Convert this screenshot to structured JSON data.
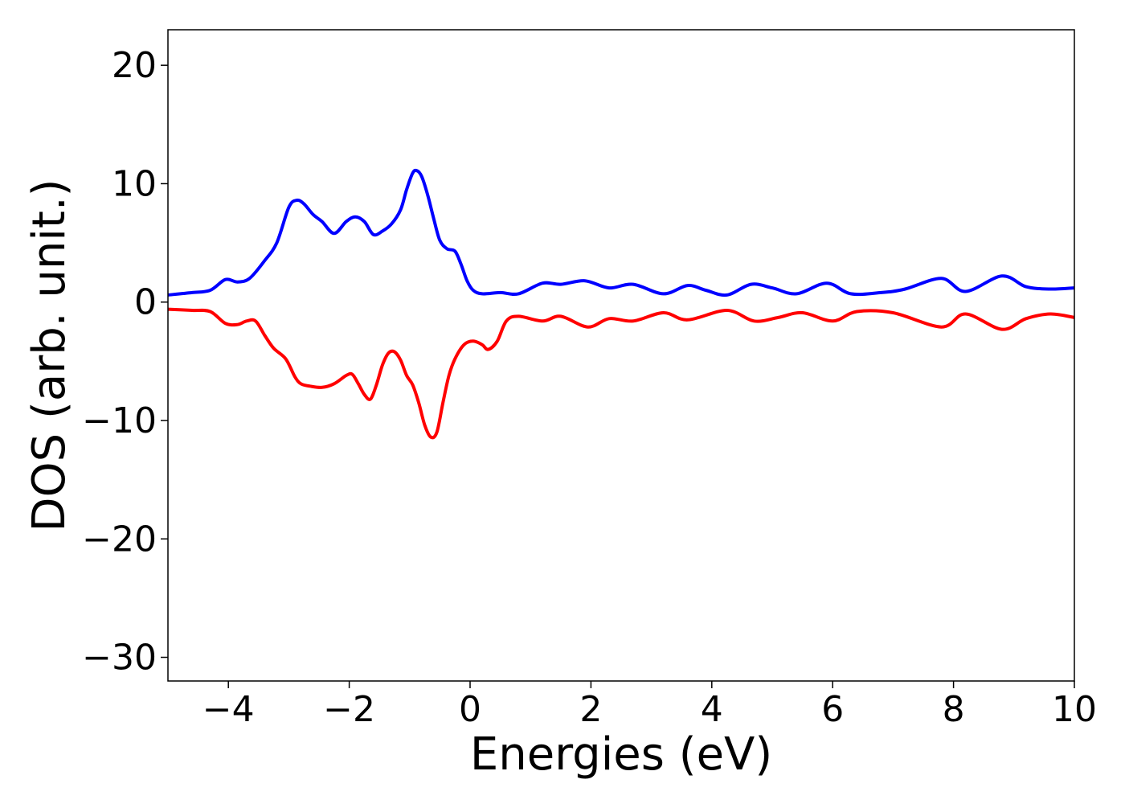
{
  "chart_data": {
    "type": "line",
    "title": "",
    "xlabel": "Energies (eV)",
    "ylabel": "DOS (arb. unit.)",
    "xlim": [
      -5,
      10
    ],
    "ylim": [
      -32,
      23
    ],
    "xticks": [
      -4,
      -2,
      0,
      2,
      4,
      6,
      8,
      10
    ],
    "xtick_labels": [
      "−4",
      "−2",
      "0",
      "2",
      "4",
      "6",
      "8",
      "10"
    ],
    "yticks": [
      -30,
      -20,
      -10,
      0,
      10,
      20
    ],
    "ytick_labels": [
      "−30",
      "−20",
      "−10",
      "0",
      "10",
      "20"
    ],
    "grid": false,
    "legend": "none",
    "series": [
      {
        "color": "#0000ff",
        "x": [
          -5.0,
          -4.6,
          -4.3,
          -4.05,
          -3.85,
          -3.65,
          -3.4,
          -3.2,
          -3.0,
          -2.87,
          -2.75,
          -2.6,
          -2.45,
          -2.25,
          -2.05,
          -1.9,
          -1.75,
          -1.6,
          -1.45,
          -1.3,
          -1.15,
          -1.05,
          -0.95,
          -0.88,
          -0.8,
          -0.7,
          -0.6,
          -0.5,
          -0.38,
          -0.25,
          -0.15,
          -0.05,
          0.05,
          0.2,
          0.5,
          0.8,
          1.2,
          1.5,
          1.9,
          2.3,
          2.7,
          3.2,
          3.6,
          3.9,
          4.25,
          4.65,
          5.0,
          5.4,
          5.9,
          6.3,
          6.8,
          7.2,
          7.8,
          8.2,
          8.8,
          9.2,
          9.6,
          10.0
        ],
        "y": [
          0.6,
          0.8,
          1.0,
          1.9,
          1.7,
          2.0,
          3.5,
          5.0,
          8.0,
          8.6,
          8.3,
          7.4,
          6.8,
          5.8,
          6.8,
          7.2,
          6.8,
          5.7,
          6.0,
          6.6,
          7.8,
          9.5,
          10.9,
          11.1,
          10.6,
          9.0,
          7.0,
          5.2,
          4.5,
          4.3,
          3.2,
          1.8,
          1.0,
          0.7,
          0.8,
          0.7,
          1.6,
          1.5,
          1.8,
          1.2,
          1.5,
          0.7,
          1.4,
          1.0,
          0.6,
          1.5,
          1.2,
          0.7,
          1.6,
          0.7,
          0.8,
          1.1,
          2.0,
          0.9,
          2.2,
          1.3,
          1.1,
          1.2
        ]
      },
      {
        "color": "#ff0000",
        "x": [
          -5.0,
          -4.6,
          -4.3,
          -4.05,
          -3.85,
          -3.7,
          -3.55,
          -3.4,
          -3.25,
          -3.05,
          -2.9,
          -2.8,
          -2.65,
          -2.45,
          -2.25,
          -2.05,
          -1.95,
          -1.85,
          -1.75,
          -1.65,
          -1.55,
          -1.45,
          -1.35,
          -1.25,
          -1.15,
          -1.05,
          -0.95,
          -0.85,
          -0.75,
          -0.65,
          -0.55,
          -0.45,
          -0.35,
          -0.25,
          -0.1,
          0.05,
          0.2,
          0.3,
          0.45,
          0.6,
          0.8,
          1.2,
          1.5,
          1.95,
          2.3,
          2.7,
          3.2,
          3.6,
          4.25,
          4.7,
          5.1,
          5.5,
          6.0,
          6.4,
          7.0,
          7.8,
          8.2,
          8.8,
          9.2,
          9.6,
          10.0
        ],
        "y": [
          -0.6,
          -0.7,
          -0.8,
          -1.8,
          -1.9,
          -1.6,
          -1.6,
          -2.8,
          -3.9,
          -4.8,
          -6.3,
          -6.9,
          -7.1,
          -7.2,
          -6.9,
          -6.2,
          -6.1,
          -6.9,
          -7.8,
          -8.2,
          -7.0,
          -5.3,
          -4.3,
          -4.2,
          -4.9,
          -6.2,
          -7.0,
          -8.5,
          -10.4,
          -11.4,
          -11.0,
          -8.5,
          -6.2,
          -4.8,
          -3.6,
          -3.3,
          -3.6,
          -4.0,
          -3.3,
          -1.6,
          -1.2,
          -1.6,
          -1.2,
          -2.1,
          -1.4,
          -1.6,
          -0.9,
          -1.5,
          -0.7,
          -1.6,
          -1.3,
          -0.9,
          -1.6,
          -0.8,
          -0.9,
          -2.1,
          -1.0,
          -2.3,
          -1.4,
          -1.0,
          -1.3
        ]
      }
    ]
  }
}
